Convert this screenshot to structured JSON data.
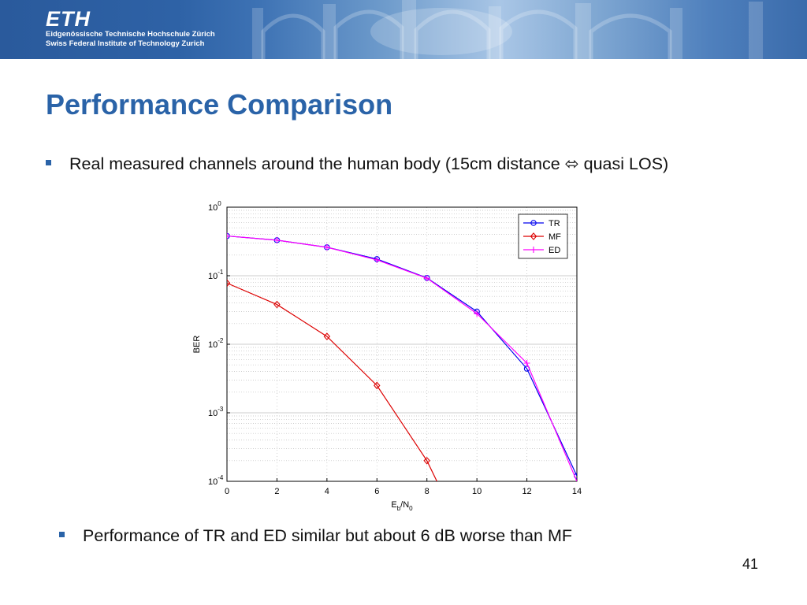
{
  "header": {
    "logo_text": "ETH",
    "institute_line_1": "Eidgenössische Technische Hochschule Zürich",
    "institute_line_2": "Swiss Federal Institute of Technology Zurich"
  },
  "slide": {
    "title": "Performance Comparison",
    "bullets": [
      "Real measured channels around the human body (15cm distance ⬄ quasi LOS)",
      "Performance of TR and ED similar but about 6 dB worse than MF"
    ],
    "page_number": "41"
  },
  "colors": {
    "accent": "#2a63a8",
    "banner": "#2e62a6"
  },
  "chart_data": {
    "type": "line",
    "title": "",
    "xlabel_main": "E",
    "xlabel_sub1": "b",
    "xlabel_mid": "/N",
    "xlabel_sub2": "0",
    "ylabel": "BER",
    "xlim": [
      0,
      14
    ],
    "ylim": [
      0.0001,
      1
    ],
    "yscale": "log",
    "grid": true,
    "legend_position": "top-right",
    "x_ticks": [
      "0",
      "2",
      "4",
      "6",
      "8",
      "10",
      "12",
      "14"
    ],
    "y_ticks": [
      {
        "base": "10",
        "exp": "0"
      },
      {
        "base": "10",
        "exp": "-1"
      },
      {
        "base": "10",
        "exp": "-2"
      },
      {
        "base": "10",
        "exp": "-3"
      },
      {
        "base": "10",
        "exp": "-4"
      }
    ],
    "series": [
      {
        "name": "TR",
        "color": "#0000ee",
        "marker": "circle",
        "x": [
          0,
          2,
          4,
          6,
          8,
          10,
          12,
          14
        ],
        "y": [
          0.38,
          0.33,
          0.26,
          0.175,
          0.093,
          0.03,
          0.0044,
          0.00012
        ]
      },
      {
        "name": "MF",
        "color": "#dd0000",
        "marker": "diamond",
        "x": [
          0,
          2,
          4,
          6,
          8,
          8.4
        ],
        "y": [
          0.078,
          0.038,
          0.013,
          0.0025,
          0.0002,
          0.0001
        ]
      },
      {
        "name": "ED",
        "color": "#ff00ff",
        "marker": "plus",
        "x": [
          0,
          2,
          4,
          6,
          8,
          10,
          12,
          14
        ],
        "y": [
          0.38,
          0.33,
          0.26,
          0.17,
          0.092,
          0.028,
          0.0053,
          0.0001
        ]
      }
    ]
  }
}
